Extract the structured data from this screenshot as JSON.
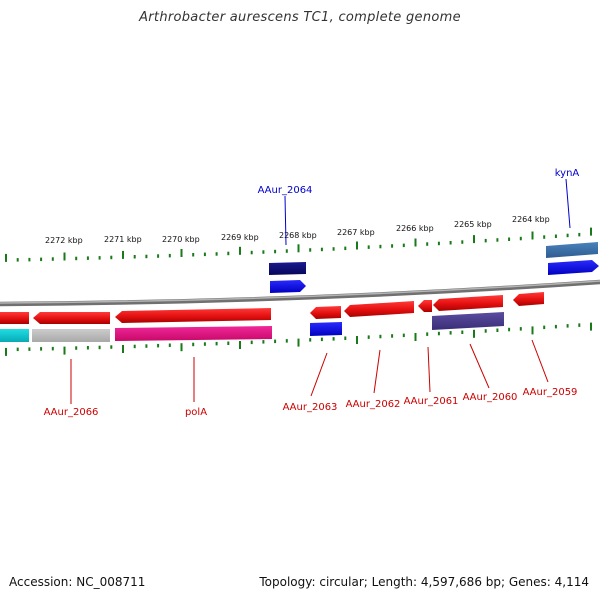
{
  "title": "Arthrobacter aurescens TC1, complete genome",
  "footer": {
    "accession": "Accession: NC_008711",
    "stats": "Topology: circular; Length: 4,597,686 bp; Genes: 4,114"
  },
  "colors": {
    "forward_label": "#0000cc",
    "reverse_label": "#cc0000",
    "tick": "#1a7a1a",
    "backbone": "#8a8a8a",
    "feature_red": "#e81010",
    "feature_blue": "#0000f0",
    "feature_navy": "#0a0a78",
    "feature_purple": "#4a3c8c",
    "feature_steel": "#3a6ea8",
    "feature_cyan": "#10c8d0",
    "feature_gray": "#bcbcbc",
    "feature_magenta": "#e8107c"
  },
  "scale": {
    "unit": "kbp",
    "ticks": [
      {
        "label": "2272 kbp"
      },
      {
        "label": "2271 kbp"
      },
      {
        "label": "2270 kbp"
      },
      {
        "label": "2269 kbp"
      },
      {
        "label": "2268 kbp"
      },
      {
        "label": "2267 kbp"
      },
      {
        "label": "2266 kbp"
      },
      {
        "label": "2265 kbp"
      },
      {
        "label": "2264 kbp"
      }
    ]
  },
  "genes": {
    "forward": [
      {
        "name": "AAur_2064",
        "color": "navy"
      },
      {
        "name": "kynA",
        "color": "steel"
      }
    ],
    "reverse": [
      {
        "name": "AAur_2066",
        "color": "gray"
      },
      {
        "name": "polA",
        "color": "magenta"
      },
      {
        "name": "AAur_2063",
        "color": "blue"
      },
      {
        "name": "AAur_2062",
        "color": "red"
      },
      {
        "name": "AAur_2061",
        "color": "red"
      },
      {
        "name": "AAur_2060",
        "color": "purple"
      },
      {
        "name": "AAur_2059",
        "color": "red"
      }
    ]
  }
}
